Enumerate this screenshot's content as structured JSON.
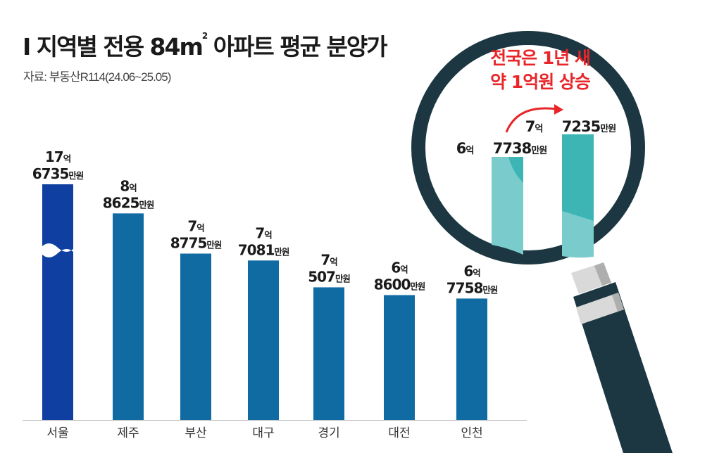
{
  "title": "I 지역별 전용 84㎡ 아파트 평균 분양가",
  "title_main": "I 지역별 전용 84m",
  "title_sup": "2",
  "title_rest": " 아파트 평균 분양가",
  "source": "자료: 부동산R114(24.06~25.05)",
  "units": {
    "eok": "억",
    "man": "만원"
  },
  "colors": {
    "seoul": "#0f3fa0",
    "bar": "#106ba3",
    "inset_light": "#7acccc",
    "inset_dark": "#3db5b5",
    "highlight": "#e8262a",
    "magnifier": "#1c3741"
  },
  "chart_data": {
    "type": "bar",
    "title": "I 지역별 전용 84㎡ 아파트 평균 분양가",
    "xlabel": "",
    "ylabel": "",
    "unit": "만원",
    "categories": [
      "서울",
      "제주",
      "부산",
      "대구",
      "경기",
      "대전",
      "인천"
    ],
    "values": [
      176735,
      88625,
      78775,
      77081,
      70507,
      68600,
      67758
    ],
    "labels": [
      {
        "eok": "17",
        "man": "6735"
      },
      {
        "eok": "8",
        "man": "8625"
      },
      {
        "eok": "7",
        "man": "8775"
      },
      {
        "eok": "7",
        "man": "7081"
      },
      {
        "eok": "7",
        "man": "507"
      },
      {
        "eok": "6",
        "man": "8600"
      },
      {
        "eok": "6",
        "man": "7758"
      }
    ],
    "axis_break_category": "서울",
    "grid": false,
    "inset": {
      "annotation": [
        "전국은 1년 새",
        "약 1억원 상승"
      ],
      "values": [
        67738,
        77235
      ],
      "labels": [
        {
          "eok": "6",
          "man": "7738"
        },
        {
          "eok": "7",
          "man": "7235"
        }
      ]
    }
  }
}
